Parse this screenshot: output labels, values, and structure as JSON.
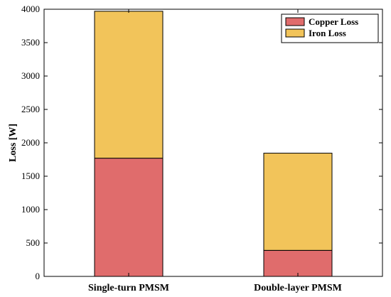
{
  "chart_data": {
    "type": "bar",
    "stacked": true,
    "categories": [
      "Single-turn PMSM",
      "Double-layer PMSM"
    ],
    "series": [
      {
        "name": "Copper Loss",
        "values": [
          1770,
          390
        ],
        "color": "#E06C6C"
      },
      {
        "name": "Iron Loss",
        "values": [
          2200,
          1455
        ],
        "color": "#F2C45A"
      }
    ],
    "title": "",
    "xlabel": "",
    "ylabel": "Loss [W]",
    "ylim": [
      0,
      4000
    ],
    "yticks": [
      0,
      500,
      1000,
      1500,
      2000,
      2500,
      3000,
      3500,
      4000
    ],
    "legend_position": "top-right",
    "grid": false
  }
}
